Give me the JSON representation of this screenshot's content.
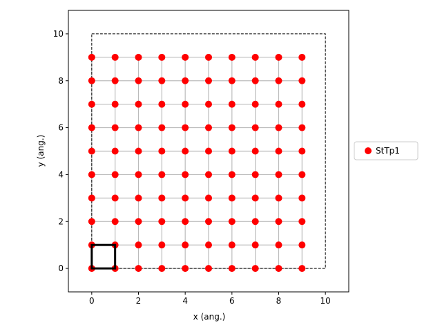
{
  "chart_data": {
    "type": "scatter",
    "xlabel": "x (ang.)",
    "ylabel": "y (ang.)",
    "xlim": [
      -1,
      11
    ],
    "ylim": [
      -1,
      11
    ],
    "xticks": [
      0,
      2,
      4,
      6,
      8,
      10
    ],
    "yticks": [
      0,
      2,
      4,
      6,
      8,
      10
    ],
    "grid": false,
    "legend_position": "right",
    "lattice": {
      "x_values": [
        0,
        1,
        2,
        3,
        4,
        5,
        6,
        7,
        8,
        9
      ],
      "y_values": [
        0,
        1,
        2,
        3,
        4,
        5,
        6,
        7,
        8,
        9
      ],
      "bond_color": "#bbbbbb"
    },
    "supercell": {
      "x": [
        0,
        10
      ],
      "y": [
        0,
        10
      ],
      "style": "dashed",
      "color": "#000000"
    },
    "unit_cell": {
      "x": [
        0,
        1
      ],
      "y": [
        0,
        1
      ],
      "color": "#000000"
    },
    "series": [
      {
        "name": "StTp1",
        "color": "#ff0000",
        "marker": "circle"
      }
    ]
  }
}
